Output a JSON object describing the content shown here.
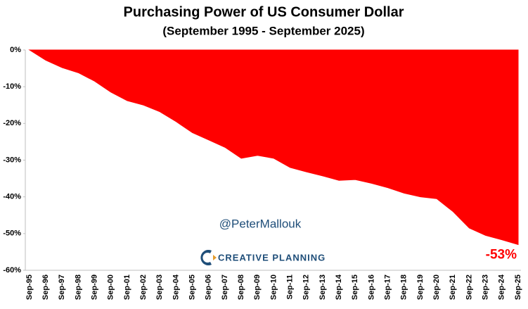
{
  "chart_data": {
    "type": "area",
    "title": "Purchasing Power of US Consumer Dollar",
    "subtitle": "(September 1995 - September 2025)",
    "categories": [
      "Sep-95",
      "Sep-96",
      "Sep-97",
      "Sep-98",
      "Sep-99",
      "Sep-00",
      "Sep-01",
      "Sep-02",
      "Sep-03",
      "Sep-04",
      "Sep-05",
      "Sep-06",
      "Sep-07",
      "Sep-08",
      "Sep-09",
      "Sep-10",
      "Sep-11",
      "Sep-12",
      "Sep-13",
      "Sep-14",
      "Sep-15",
      "Sep-16",
      "Sep-17",
      "Sep-18",
      "Sep-19",
      "Sep-20",
      "Sep-21",
      "Sep-22",
      "Sep-23",
      "Sep-24",
      "Sep-25"
    ],
    "values": [
      0,
      -2.8,
      -4.8,
      -6.2,
      -8.5,
      -11.5,
      -13.8,
      -15,
      -16.8,
      -19.5,
      -22.5,
      -24.5,
      -26.5,
      -29.5,
      -28.7,
      -29.5,
      -32,
      -33.2,
      -34.3,
      -35.5,
      -35.3,
      -36.3,
      -37.5,
      -39,
      -40,
      -40.5,
      -44,
      -48.5,
      -50.5,
      -51.7,
      -53
    ],
    "value_labels": [
      null,
      null,
      null,
      null,
      null,
      null,
      null,
      null,
      null,
      null,
      null,
      null,
      null,
      null,
      null,
      null,
      null,
      null,
      null,
      null,
      null,
      null,
      null,
      null,
      null,
      null,
      null,
      null,
      null,
      null,
      "-53%"
    ],
    "color": "#ff0000",
    "ylim": [
      -60,
      0
    ],
    "yticks": [
      {
        "value": 0,
        "label": "0%"
      },
      {
        "value": -10,
        "label": "-10%"
      },
      {
        "value": -20,
        "label": "-20%"
      },
      {
        "value": -30,
        "label": "-30%"
      },
      {
        "value": -40,
        "label": "-40%"
      },
      {
        "value": -50,
        "label": "-50%"
      },
      {
        "value": -60,
        "label": "-60%"
      }
    ],
    "grid": false,
    "annotations": [
      "@PeterMallouk",
      "CREATIVE PLANNING"
    ]
  }
}
